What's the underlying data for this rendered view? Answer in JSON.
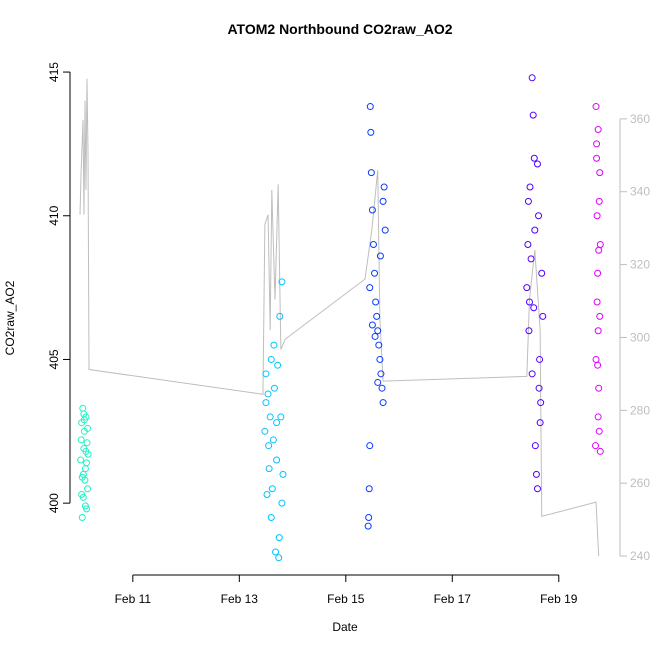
{
  "chart_data": {
    "type": "scatter",
    "title": "ATOM2 Northbound CO2raw_AO2",
    "x_label": "Date",
    "y_label": "CO2raw_AO2",
    "xlim": [
      9.82,
      20.15
    ],
    "xticks": [
      {
        "value": 11,
        "label": "Feb 11"
      },
      {
        "value": 13,
        "label": "Feb 13"
      },
      {
        "value": 15,
        "label": "Feb 15"
      },
      {
        "value": 17,
        "label": "Feb 17"
      },
      {
        "value": 19,
        "label": "Feb 19"
      }
    ],
    "ylim": [
      397.5,
      415.35
    ],
    "yticks": [
      400,
      405,
      410,
      415
    ],
    "y2lim": [
      234.8,
      375.6
    ],
    "y2ticks": [
      240,
      260,
      280,
      300,
      320,
      340,
      360
    ],
    "y2_color": "#bebebe",
    "series": [
      {
        "color": "#bebebe",
        "type": "line",
        "axis": "y2",
        "x": [
          10.008,
          10.027,
          10.064,
          10.083,
          10.102,
          10.12,
          10.139,
          10.158,
          10.177,
          13.444,
          13.48,
          13.54,
          13.58,
          13.61,
          13.67,
          13.73,
          13.78,
          13.86,
          15.36,
          15.49,
          15.6,
          15.64,
          15.7,
          18.4,
          18.45,
          18.55,
          18.65,
          18.68,
          19.7,
          19.75
        ],
        "values": [
          333.7,
          344.7,
          359.7,
          333.7,
          365,
          340.5,
          371,
          351.5,
          291.2,
          284.4,
          331,
          333.7,
          302,
          340.5,
          310.4,
          342,
          296.7,
          299.5,
          316,
          329.6,
          346,
          305,
          288,
          289.3,
          310.4,
          324,
          302,
          250.9,
          254.8,
          240
        ]
      },
      {
        "color": "#19f5c4",
        "x": [
          10.02,
          10.04,
          10.05,
          10.06,
          10.07,
          10.08,
          10.09,
          10.1,
          10.11,
          10.12,
          10.13,
          10.14,
          10.15,
          10.16,
          10.03,
          10.05,
          10.07,
          10.09,
          10.11,
          10.13,
          10.15,
          10.04,
          10.08,
          10.12
        ],
        "values": [
          401.5,
          402.8,
          399.5,
          403.3,
          400.2,
          401.9,
          402.5,
          400.8,
          401.2,
          403.0,
          399.8,
          402.1,
          400.5,
          401.7,
          402.2,
          400.9,
          401.0,
          402.9,
          399.9,
          401.4,
          402.6,
          400.3,
          403.1,
          401.8
        ]
      },
      {
        "color": "#00c4ff",
        "x": [
          13.48,
          13.5,
          13.52,
          13.54,
          13.56,
          13.58,
          13.6,
          13.62,
          13.64,
          13.66,
          13.68,
          13.7,
          13.72,
          13.74,
          13.76,
          13.78,
          13.8,
          13.82,
          13.5,
          13.55,
          13.6,
          13.65,
          13.7,
          13.75,
          13.8
        ],
        "values": [
          402.5,
          404.5,
          400.3,
          403.8,
          401.2,
          403.0,
          405.0,
          400.5,
          402.2,
          404.0,
          398.3,
          401.5,
          404.8,
          398.1,
          406.5,
          403.0,
          407.7,
          401.0,
          403.5,
          402.0,
          399.5,
          405.5,
          402.8,
          398.8,
          400.0
        ]
      },
      {
        "color": "#0a3cff",
        "x": [
          15.42,
          15.43,
          15.44,
          15.45,
          15.46,
          15.47,
          15.48,
          15.5,
          15.52,
          15.54,
          15.56,
          15.58,
          15.6,
          15.62,
          15.64,
          15.66,
          15.68,
          15.7,
          15.72,
          15.74,
          15.45,
          15.5,
          15.55,
          15.6,
          15.65,
          15.7
        ],
        "values": [
          399.2,
          399.5,
          400.5,
          402.0,
          413.8,
          412.9,
          411.5,
          410.2,
          409.0,
          408.0,
          407.0,
          406.5,
          406.0,
          405.5,
          405.0,
          404.5,
          404.0,
          403.5,
          411.0,
          409.5,
          407.5,
          406.2,
          405.8,
          404.2,
          408.6,
          410.5
        ]
      },
      {
        "color": "#5000ff",
        "x": [
          18.4,
          18.42,
          18.44,
          18.46,
          18.48,
          18.5,
          18.52,
          18.54,
          18.56,
          18.58,
          18.6,
          18.62,
          18.64,
          18.66,
          18.68,
          18.7,
          18.45,
          18.5,
          18.55,
          18.6,
          18.65,
          18.43,
          18.53,
          18.63
        ],
        "values": [
          407.5,
          409.0,
          406.0,
          411.0,
          408.5,
          414.8,
          413.5,
          412.0,
          402.0,
          401.0,
          400.5,
          410.0,
          405.0,
          403.5,
          408.0,
          406.5,
          407.0,
          404.5,
          409.5,
          411.8,
          402.8,
          410.5,
          406.8,
          404.0
        ]
      },
      {
        "color": "#e000ff",
        "x": [
          19.69,
          19.7,
          19.71,
          19.72,
          19.73,
          19.74,
          19.75,
          19.76,
          19.77,
          19.78,
          19.7,
          19.72,
          19.74,
          19.76,
          19.78,
          19.71,
          19.73,
          19.75,
          19.77,
          19.74
        ],
        "values": [
          402.0,
          413.8,
          412.5,
          410.0,
          408.0,
          406.0,
          404.0,
          402.5,
          411.5,
          409.0,
          405.0,
          407.0,
          403.0,
          410.5,
          401.8,
          412.0,
          404.8,
          408.8,
          406.5,
          413.0
        ]
      }
    ]
  }
}
